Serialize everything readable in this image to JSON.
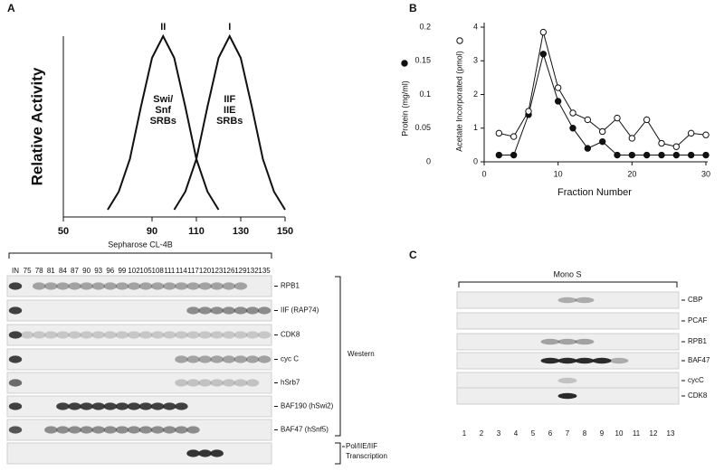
{
  "panel_labels": [
    "A",
    "B",
    "C"
  ],
  "chart_data": [
    {
      "type": "line",
      "ylabel": "Relative Activity",
      "xlim": [
        50,
        150
      ],
      "xticks": [
        50,
        90,
        110,
        130,
        150
      ],
      "ylim": [
        0,
        1
      ],
      "series": [
        {
          "name": "II",
          "color": "#111111",
          "x": [
            70,
            75,
            80,
            85,
            90,
            95,
            100,
            105,
            110,
            115,
            120
          ],
          "values": [
            0.04,
            0.14,
            0.32,
            0.61,
            0.88,
            1,
            0.88,
            0.61,
            0.32,
            0.14,
            0.04
          ],
          "annotation": [
            "Swi/",
            "Snf",
            "SRBs"
          ]
        },
        {
          "name": "I",
          "color": "#111111",
          "x": [
            100,
            105,
            110,
            115,
            120,
            125,
            130,
            135,
            140,
            145,
            150
          ],
          "values": [
            0.04,
            0.14,
            0.32,
            0.61,
            0.88,
            1,
            0.88,
            0.61,
            0.32,
            0.14,
            0.04
          ],
          "annotation": [
            "IIF",
            "IIE",
            "SRBs"
          ]
        }
      ]
    },
    {
      "type": "line",
      "xlabel": "Fraction Number",
      "ylabel": "Protein (mg/ml)",
      "y2label": "Acetate Incorporated (pmol)",
      "x": [
        2,
        4,
        6,
        8,
        10,
        12,
        14,
        16,
        18,
        20,
        22,
        24,
        26,
        28,
        30
      ],
      "xlim": [
        0,
        30
      ],
      "xticks": [
        0,
        10,
        20,
        30
      ],
      "ylim": [
        0,
        0.2
      ],
      "yticks": [
        0,
        0.05,
        0.1,
        0.15,
        0.2
      ],
      "y2lim": [
        0,
        4
      ],
      "y2ticks": [
        0,
        1,
        2,
        3,
        4
      ],
      "series": [
        {
          "marker": "filled",
          "color": "#111111",
          "values": [
            0.01,
            0.01,
            0.07,
            0.16,
            0.09,
            0.05,
            0.02,
            0.03,
            0.01,
            0.01,
            0.01,
            0.01,
            0.01,
            0.01,
            0.01
          ]
        },
        {
          "marker": "open",
          "color": "#111111",
          "axis": "y2",
          "values": [
            0.85,
            0.75,
            1.5,
            3.85,
            2.2,
            1.45,
            1.25,
            0.9,
            1.3,
            0.7,
            1.25,
            0.55,
            0.45,
            0.85,
            0.8
          ]
        }
      ]
    }
  ],
  "blot_a": {
    "title": "Sepharose CL-4B",
    "lanes": [
      "IN",
      75,
      78,
      81,
      84,
      87,
      90,
      93,
      96,
      99,
      102,
      105,
      108,
      111,
      114,
      117,
      120,
      123,
      126,
      129,
      132,
      135
    ],
    "rows": [
      "RPB1",
      "IIF (RAP74)",
      "CDK8",
      "cyc C",
      "hSrb7",
      "BAF190 (hSwi2)",
      "BAF47 (hSnf5)"
    ],
    "western": "Western",
    "transcription": [
      "Pol/IIE/IIF",
      "Transcription"
    ]
  },
  "blot_c": {
    "title": "Mono S",
    "lanes": [
      1,
      2,
      3,
      4,
      5,
      6,
      7,
      8,
      9,
      10,
      11,
      12,
      13
    ],
    "rows": [
      "CBP",
      "PCAF",
      "RPB1",
      "BAF47",
      "cycC",
      "CDK8"
    ]
  }
}
